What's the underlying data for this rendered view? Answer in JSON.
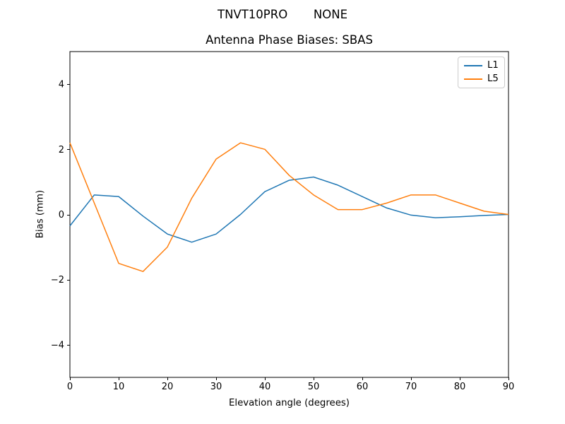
{
  "suptitle": "TNVT10PRO       NONE",
  "chart_data": {
    "type": "line",
    "title": "Antenna Phase Biases: SBAS",
    "xlabel": "Elevation angle (degrees)",
    "ylabel": "Bias (mm)",
    "xlim": [
      0,
      90
    ],
    "ylim": [
      -5,
      5
    ],
    "xticks": [
      0,
      10,
      20,
      30,
      40,
      50,
      60,
      70,
      80,
      90
    ],
    "yticks": [
      -4,
      -2,
      0,
      2,
      4
    ],
    "grid": false,
    "legend_position": "upper right",
    "x": [
      0,
      5,
      10,
      15,
      20,
      25,
      30,
      35,
      40,
      45,
      50,
      55,
      60,
      65,
      70,
      75,
      80,
      85,
      90
    ],
    "series": [
      {
        "name": "L1",
        "color": "#1f77b4",
        "values": [
          -0.35,
          0.6,
          0.55,
          -0.05,
          -0.6,
          -0.85,
          -0.6,
          0.0,
          0.7,
          1.05,
          1.15,
          0.9,
          0.55,
          0.2,
          -0.02,
          -0.1,
          -0.07,
          -0.03,
          0.0
        ]
      },
      {
        "name": "L5",
        "color": "#ff7f0e",
        "values": [
          2.2,
          0.35,
          -1.5,
          -1.75,
          -1.0,
          0.5,
          1.7,
          2.2,
          2.0,
          1.2,
          0.6,
          0.15,
          0.15,
          0.35,
          0.6,
          0.6,
          0.35,
          0.1,
          0.0
        ]
      }
    ]
  }
}
